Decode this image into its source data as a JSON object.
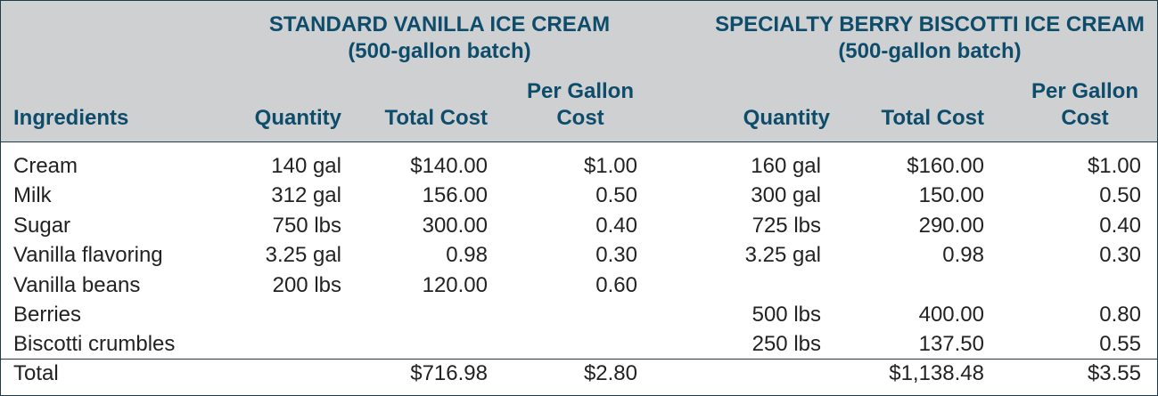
{
  "groups": {
    "standard": {
      "title": "STANDARD VANILLA ICE CREAM",
      "subtitle": "(500-gallon batch)"
    },
    "specialty": {
      "title": "SPECIALTY BERRY BISCOTTI ICE CREAM",
      "subtitle": "(500-gallon batch)"
    }
  },
  "columns": {
    "ingredients": "Ingredients",
    "quantity": "Quantity",
    "total_cost": "Total Cost",
    "per_gallon_1": "Per Gallon",
    "per_gallon_2": "Cost"
  },
  "rows": [
    {
      "name": "Cream",
      "s_qty": "140 gal",
      "s_cost": "$140.00",
      "s_pg": "$1.00",
      "b_qty": "160 gal",
      "b_cost": "$160.00",
      "b_pg": "$1.00"
    },
    {
      "name": "Milk",
      "s_qty": "312 gal",
      "s_cost": "156.00",
      "s_pg": "0.50",
      "b_qty": "300 gal",
      "b_cost": "150.00",
      "b_pg": "0.50"
    },
    {
      "name": "Sugar",
      "s_qty": "750 lbs",
      "s_cost": "300.00",
      "s_pg": "0.40",
      "b_qty": "725 lbs",
      "b_cost": "290.00",
      "b_pg": "0.40"
    },
    {
      "name": "Vanilla flavoring",
      "s_qty": "3.25 gal",
      "s_cost": "0.98",
      "s_pg": "0.30",
      "b_qty": "3.25 gal",
      "b_cost": "0.98",
      "b_pg": "0.30"
    },
    {
      "name": "Vanilla beans",
      "s_qty": "200 lbs",
      "s_cost": "120.00",
      "s_pg": "0.60",
      "b_qty": "",
      "b_cost": "",
      "b_pg": ""
    },
    {
      "name": "Berries",
      "s_qty": "",
      "s_cost": "",
      "s_pg": "",
      "b_qty": "500 lbs",
      "b_cost": "400.00",
      "b_pg": "0.80"
    },
    {
      "name": "Biscotti crumbles",
      "s_qty": "",
      "s_cost": "",
      "s_pg": "",
      "b_qty": "250 lbs",
      "b_cost": "137.50",
      "b_pg": "0.55"
    }
  ],
  "total": {
    "label": "Total",
    "s_cost": "$716.98",
    "s_pg": "$2.80",
    "b_cost": "$1,138.48",
    "b_pg": "$3.55"
  }
}
